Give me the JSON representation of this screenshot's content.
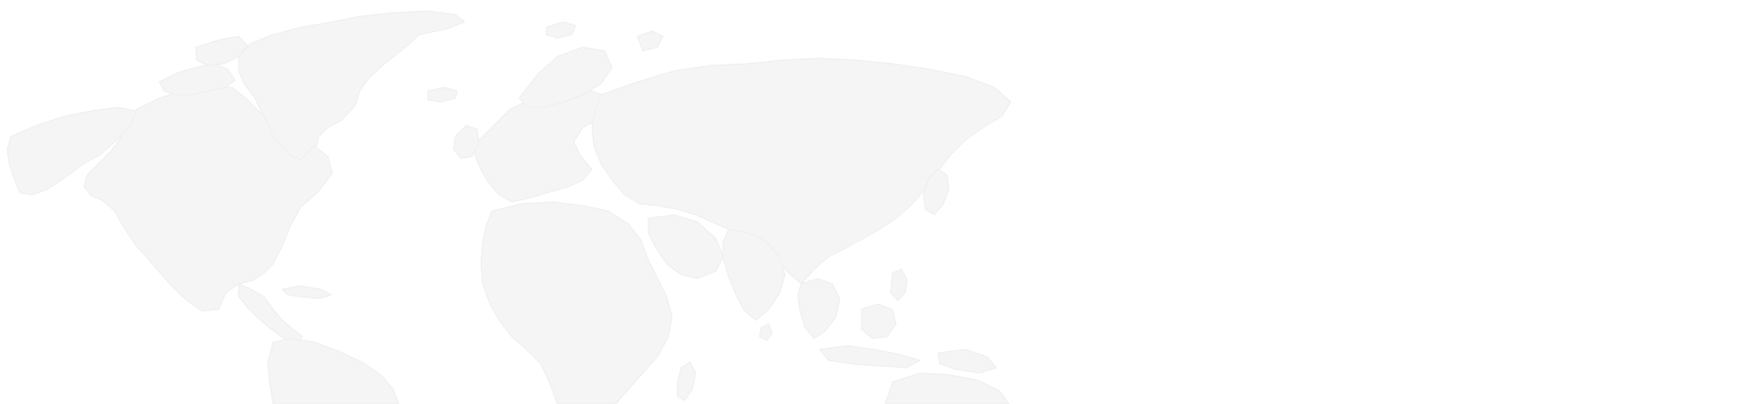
{
  "map": {
    "style": "world-silhouette",
    "land_color": "#f5f5f5",
    "land_stroke_color": "#eeeeee",
    "background_color": "#ffffff",
    "labels": []
  }
}
